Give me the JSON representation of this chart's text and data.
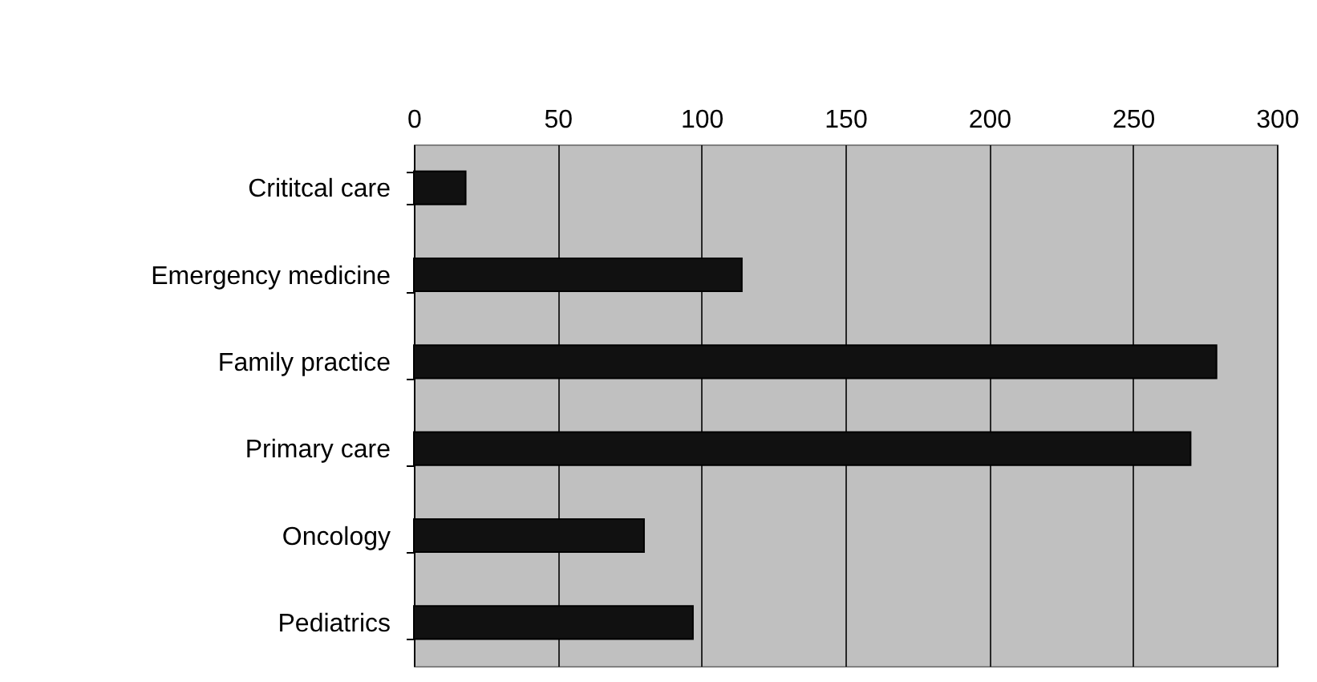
{
  "chart_data": {
    "type": "bar",
    "orientation": "horizontal",
    "categories": [
      "Crititcal care",
      "Emergency medicine",
      "Family practice",
      "Primary care",
      "Oncology",
      "Pediatrics"
    ],
    "values": [
      18,
      114,
      279,
      270,
      80,
      97
    ],
    "color": "#111111",
    "xlim": [
      0,
      300
    ],
    "xticks": [
      0,
      50,
      100,
      150,
      200,
      250,
      300
    ],
    "grid": "x"
  }
}
